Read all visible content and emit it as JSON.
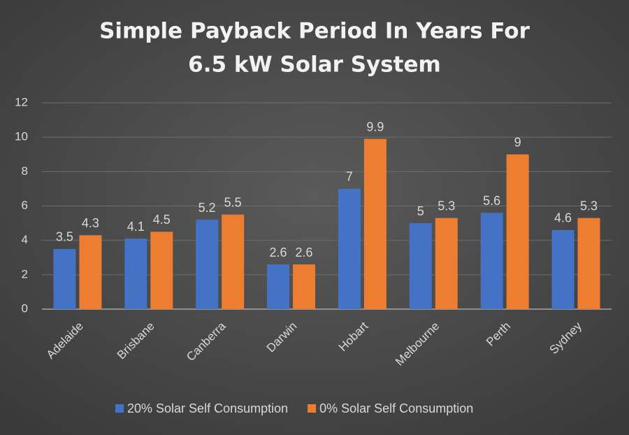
{
  "chart_data": {
    "type": "bar",
    "title": [
      "Simple Payback Period In Years For",
      "6.5 kW Solar System"
    ],
    "categories": [
      "Adelaide",
      "Brisbane",
      "Canberra",
      "Darwin",
      "Hobart",
      "Melbourne",
      "Perth",
      "Sydney"
    ],
    "series": [
      {
        "name": "20% Solar Self Consumption",
        "color": "#4472c4",
        "values": [
          3.5,
          4.1,
          5.2,
          2.6,
          7,
          5,
          5.6,
          4.6
        ]
      },
      {
        "name": "0% Solar Self Consumption",
        "color": "#ed7d31",
        "values": [
          4.3,
          4.5,
          5.5,
          2.6,
          9.9,
          5.3,
          9,
          5.3
        ]
      }
    ],
    "ylim": [
      0,
      12
    ],
    "yticks": [
      0,
      2,
      4,
      6,
      8,
      10,
      12
    ],
    "grid": true,
    "legend": "bottom"
  }
}
